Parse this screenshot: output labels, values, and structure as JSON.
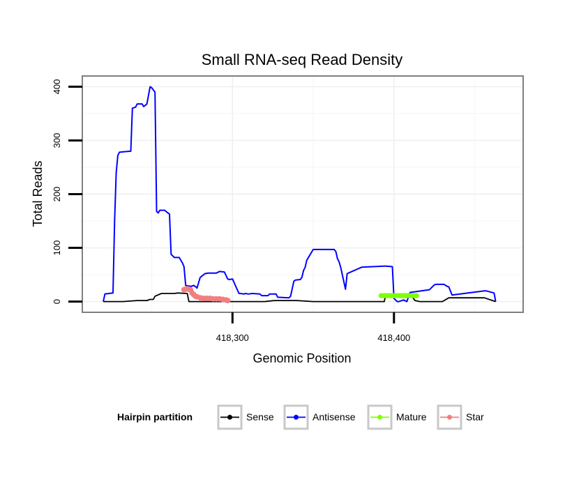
{
  "chart_data": {
    "type": "line",
    "title": "Small RNA-seq Read Density",
    "xlabel": "Genomic Position",
    "ylabel": "Total Reads",
    "xlim": [
      418207,
      418480
    ],
    "ylim": [
      -20,
      420
    ],
    "x_ticks": [
      418300,
      418400
    ],
    "x_tick_labels": [
      "418,300",
      "418,400"
    ],
    "y_ticks": [
      0,
      100,
      200,
      300,
      400
    ],
    "y_tick_labels": [
      "0",
      "100",
      "200",
      "300",
      "400"
    ],
    "grid": true,
    "legend": {
      "title": "Hairpin partition",
      "position": "bottom",
      "entries": [
        "Sense",
        "Antisense",
        "Mature",
        "Star"
      ]
    },
    "series": [
      {
        "name": "Antisense",
        "color": "#0000ff",
        "x": [
          418220,
          418221,
          418226,
          418227,
          418228,
          418229,
          418230,
          418233,
          418237,
          418238,
          418240,
          418241,
          418244,
          418245,
          418247,
          418249,
          418250,
          418252,
          418253,
          418254,
          418255,
          418258,
          418260,
          418261,
          418262,
          418264,
          418266,
          418267,
          418269,
          418270,
          418271,
          418273,
          418274,
          418276,
          418277,
          418278,
          418280,
          418283,
          418285,
          418287,
          418288,
          418290,
          418292,
          418295,
          418297,
          418298,
          418300,
          418304,
          418305,
          418307,
          418308,
          418310,
          418312,
          418317,
          418318,
          418322,
          418323,
          418327,
          418328,
          418335,
          418336,
          418338,
          418339,
          418342,
          418343,
          418344,
          418345,
          418346,
          418350,
          418363,
          418364,
          418365,
          418366,
          418367,
          418370,
          418371,
          418380,
          418394,
          418395,
          418399,
          418400,
          418402,
          418403,
          418405,
          418406,
          418408,
          418410,
          418422,
          418425,
          418426,
          418428,
          418431,
          418432,
          418434,
          418436,
          418438,
          418456,
          418457,
          418462,
          418463
        ],
        "y": [
          0,
          14,
          16,
          150,
          240,
          272,
          278,
          279,
          280,
          360,
          362,
          368,
          368,
          363,
          368,
          400,
          398,
          390,
          168,
          165,
          170,
          170,
          165,
          163,
          88,
          82,
          82,
          82,
          72,
          65,
          30,
          29,
          28,
          30,
          28,
          25,
          45,
          52,
          53,
          53,
          53,
          53,
          56,
          55,
          42,
          41,
          42,
          15,
          15,
          14,
          15,
          14,
          15,
          14,
          11,
          11,
          14,
          14,
          8,
          7,
          10,
          38,
          40,
          41,
          45,
          58,
          64,
          77,
          97,
          97,
          93,
          80,
          74,
          64,
          23,
          52,
          64,
          66,
          66,
          65,
          6,
          0,
          0,
          2,
          3,
          0,
          17,
          22,
          31,
          32,
          32,
          32,
          30,
          27,
          12,
          13,
          20,
          20,
          16,
          0
        ]
      },
      {
        "name": "Sense",
        "color": "#000000",
        "x": [
          418220,
          418232,
          418241,
          418244,
          418247,
          418249,
          418251,
          418252,
          418256,
          418264,
          418266,
          418272,
          418273,
          418280,
          418290,
          418298,
          418320,
          418326,
          418340,
          418350,
          418378,
          418394,
          418395,
          418410,
          418413,
          418416,
          418430,
          418434,
          418456,
          418463
        ],
        "y": [
          0,
          0,
          2,
          2,
          2,
          4,
          4,
          10,
          15,
          15,
          16,
          15,
          0,
          0,
          0,
          0,
          0,
          2,
          2,
          0,
          0,
          0,
          14,
          14,
          2,
          0,
          0,
          7,
          7,
          0
        ]
      },
      {
        "name": "Mature",
        "color": "#7fff00",
        "x": [
          418392,
          418394,
          418396,
          418398,
          418400,
          418402,
          418404,
          418406,
          418408,
          418410,
          418412,
          418414
        ],
        "y": [
          11,
          11,
          11,
          11,
          11,
          11,
          11,
          11,
          11,
          11,
          11,
          11
        ]
      },
      {
        "name": "Star",
        "color": "#f08080",
        "x": [
          418270,
          418271,
          418272,
          418273,
          418274,
          418275,
          418276,
          418277,
          418278,
          418280,
          418282,
          418284,
          418286,
          418288,
          418290,
          418292,
          418294,
          418296,
          418297
        ],
        "y": [
          22,
          23,
          24,
          23,
          22,
          16,
          13,
          10,
          9,
          7,
          6,
          6,
          6,
          5,
          5,
          5,
          4,
          3,
          2
        ]
      }
    ]
  }
}
